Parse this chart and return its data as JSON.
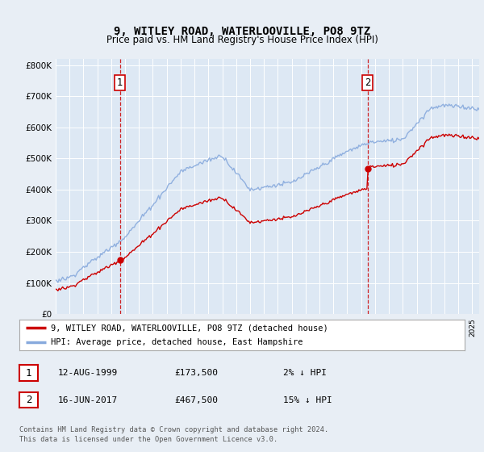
{
  "title": "9, WITLEY ROAD, WATERLOOVILLE, PO8 9TZ",
  "subtitle": "Price paid vs. HM Land Registry's House Price Index (HPI)",
  "background_color": "#e8eef5",
  "plot_bg_color": "#dde8f4",
  "ylim": [
    0,
    820000
  ],
  "yticks": [
    0,
    100000,
    200000,
    300000,
    400000,
    500000,
    600000,
    700000,
    800000
  ],
  "ytick_labels": [
    "£0",
    "£100K",
    "£200K",
    "£300K",
    "£400K",
    "£500K",
    "£600K",
    "£700K",
    "£800K"
  ],
  "hpi_color": "#88aadd",
  "price_color": "#cc0000",
  "marker_color": "#cc0000",
  "sale1": {
    "date_num": 1999.62,
    "price": 173500,
    "label": "1"
  },
  "sale2": {
    "date_num": 2017.46,
    "price": 467500,
    "label": "2"
  },
  "legend_label_price": "9, WITLEY ROAD, WATERLOOVILLE, PO8 9TZ (detached house)",
  "legend_label_hpi": "HPI: Average price, detached house, East Hampshire",
  "table_rows": [
    {
      "num": "1",
      "date": "12-AUG-1999",
      "price": "£173,500",
      "hpi": "2% ↓ HPI"
    },
    {
      "num": "2",
      "date": "16-JUN-2017",
      "price": "£467,500",
      "hpi": "15% ↓ HPI"
    }
  ],
  "footer": "Contains HM Land Registry data © Crown copyright and database right 2024.\nThis data is licensed under the Open Government Licence v3.0.",
  "xmin": 1995.0,
  "xmax": 2025.5
}
